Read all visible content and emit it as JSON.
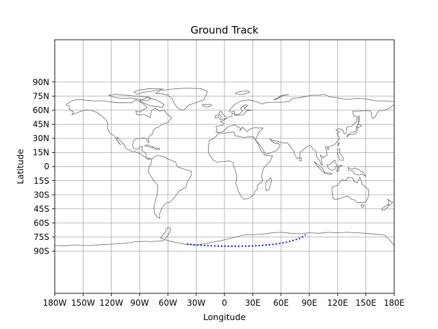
{
  "chart_data": {
    "type": "map",
    "title": "Ground Track",
    "xlabel": "Longitude",
    "ylabel": "Latitude",
    "xlim": [
      -180,
      180
    ],
    "ylim": [
      -135,
      135
    ],
    "grid": true,
    "x_ticks": [
      {
        "value": -180,
        "label": "180W"
      },
      {
        "value": -150,
        "label": "150W"
      },
      {
        "value": -120,
        "label": "120W"
      },
      {
        "value": -90,
        "label": "90W"
      },
      {
        "value": -60,
        "label": "60W"
      },
      {
        "value": -30,
        "label": "30W"
      },
      {
        "value": 0,
        "label": "0"
      },
      {
        "value": 30,
        "label": "30E"
      },
      {
        "value": 60,
        "label": "60E"
      },
      {
        "value": 90,
        "label": "90E"
      },
      {
        "value": 120,
        "label": "120E"
      },
      {
        "value": 150,
        "label": "150E"
      },
      {
        "value": 180,
        "label": "180E"
      }
    ],
    "y_ticks": [
      {
        "value": 90,
        "label": "90N"
      },
      {
        "value": 75,
        "label": "75N"
      },
      {
        "value": 60,
        "label": "60N"
      },
      {
        "value": 45,
        "label": "45N"
      },
      {
        "value": 30,
        "label": "30N"
      },
      {
        "value": 15,
        "label": "15N"
      },
      {
        "value": 0,
        "label": "0"
      },
      {
        "value": -15,
        "label": "15S"
      },
      {
        "value": -30,
        "label": "30S"
      },
      {
        "value": -45,
        "label": "45S"
      },
      {
        "value": -60,
        "label": "60S"
      },
      {
        "value": -75,
        "label": "75S"
      },
      {
        "value": -90,
        "label": "90S"
      }
    ],
    "colors": {
      "track": "#0000ff",
      "coastline": "#666666",
      "grid": "#b0b0b0"
    },
    "series": [
      {
        "style": "dotted",
        "lon": [
          -40,
          -35,
          -30,
          -25,
          -20,
          -15,
          -10,
          -5,
          0,
          5,
          10,
          15,
          20,
          25,
          30,
          35,
          40,
          45,
          50,
          55,
          60,
          65,
          70,
          75,
          78,
          81,
          83,
          85,
          86
        ],
        "lat": [
          -82.5,
          -83,
          -83.5,
          -83.8,
          -84.1,
          -84.3,
          -84.5,
          -84.6,
          -84.7,
          -84.8,
          -84.8,
          -84.8,
          -84.7,
          -84.6,
          -84.4,
          -84.2,
          -83.9,
          -83.5,
          -83,
          -82.4,
          -81.6,
          -80.6,
          -79.4,
          -78,
          -77,
          -75.8,
          -74.6,
          -73.4,
          -72.5
        ]
      }
    ]
  }
}
